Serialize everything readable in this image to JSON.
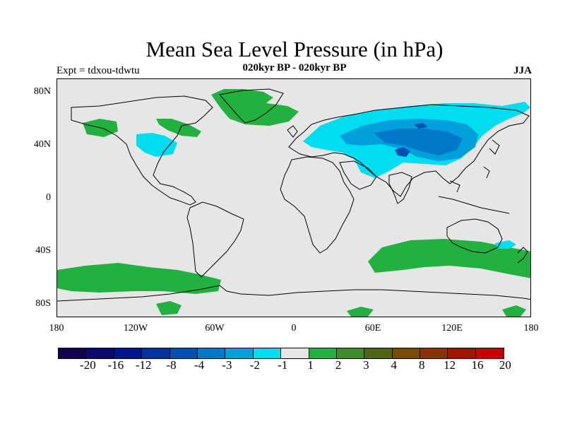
{
  "figure": {
    "title": "Mean Sea Level Pressure (in hPa)",
    "subtitle": "020kyr BP - 020kyr BP",
    "experiment": "Expt = tdxou-tdwtu",
    "season": "JJA"
  },
  "map": {
    "projection": "cylindrical equidistant",
    "lon_range": [
      -180,
      180
    ],
    "lat_range": [
      -90,
      90
    ],
    "x_ticks": [
      "180",
      "120W",
      "60W",
      "0",
      "60E",
      "120E",
      "180"
    ],
    "y_ticks": [
      "80N",
      "40N",
      "0",
      "40S",
      "80S"
    ],
    "background_color": "#e6e6e6",
    "coastline_color": "#000000"
  },
  "colorbar": {
    "labels": [
      "-20",
      "-16",
      "-12",
      "-8",
      "-4",
      "-3",
      "-2",
      "-1",
      "1",
      "2",
      "3",
      "4",
      "8",
      "12",
      "16",
      "20"
    ],
    "colors": [
      "#140050",
      "#0a0a6e",
      "#00148c",
      "#0032a0",
      "#0050b4",
      "#0078c8",
      "#00a0dc",
      "#00dcf0",
      "#e6e6e6",
      "#22b040",
      "#3c8c28",
      "#506414",
      "#784c00",
      "#8c3200",
      "#a01400",
      "#c80000"
    ]
  },
  "chart_data": {
    "type": "heatmap",
    "variable": "Mean Sea Level Pressure difference (hPa)",
    "units": "hPa",
    "anomaly_regions": [
      {
        "region": "Eurasia / Siberia",
        "class": "-1 to -2",
        "color": "#00dcf0"
      },
      {
        "region": "Central Asia core",
        "class": "-2 to -4",
        "color": "#00a0dc"
      },
      {
        "region": "Tibetan plateau spot",
        "class": "-4 to -8",
        "color": "#0050b4"
      },
      {
        "region": "Greenland / North Atlantic",
        "class": "1 to 2",
        "color": "#22b040"
      },
      {
        "region": "Eastern Canada / Labrador",
        "class": "1 to 2",
        "color": "#22b040"
      },
      {
        "region": "Western North America",
        "class": "-1 to -2",
        "color": "#00dcf0"
      },
      {
        "region": "Southern Ocean (S. Pacific / Atlantic)",
        "class": "1 to 2",
        "color": "#22b040"
      },
      {
        "region": "Southern Indian Ocean band",
        "class": "1 to 2",
        "color": "#22b040"
      },
      {
        "region": "South of New Zealand",
        "class": "-1 to -2",
        "color": "#00dcf0"
      },
      {
        "region": "Antarctica patches",
        "class": "1 to 2",
        "color": "#22b040"
      }
    ]
  }
}
